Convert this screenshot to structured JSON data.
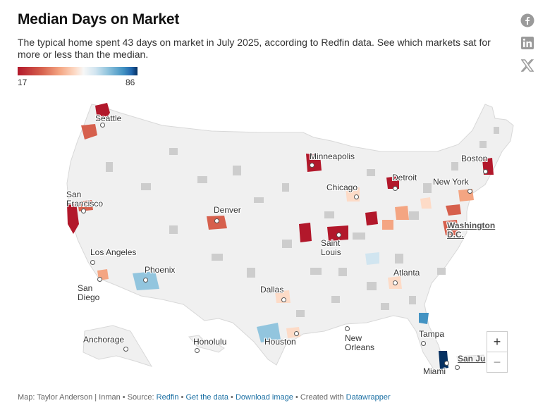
{
  "header": {
    "title": "Median Days on Market",
    "subtitle": "The typical home spent 43 days on market in July 2025, according to Redfin data. See which markets sat for more or less than the median."
  },
  "legend": {
    "min": "17",
    "max": "86"
  },
  "share": [
    {
      "name": "facebook-icon"
    },
    {
      "name": "linkedin-icon"
    },
    {
      "name": "x-icon"
    }
  ],
  "cities": {
    "seattle": "Seattle",
    "san_francisco": "San Francisco",
    "los_angeles": "Los Angeles",
    "san_diego": "San Diego",
    "phoenix": "Phoenix",
    "denver": "Denver",
    "minneapolis": "Minneapolis",
    "chicago": "Chicago",
    "detroit": "Detroit",
    "saint_louis": "Saint Louis",
    "dallas": "Dallas",
    "houston": "Houston",
    "new_orleans": "New Orleans",
    "atlanta": "Atlanta",
    "tampa": "Tampa",
    "miami": "Miami",
    "new_york": "New York",
    "boston": "Boston",
    "washington": "Washington D.C.",
    "anchorage": "Anchorage",
    "honolulu": "Honolulu",
    "san_juan": "San Ju"
  },
  "zoom": {
    "in": "+",
    "out": "−"
  },
  "footer": {
    "prefix": "Map: Taylor Anderson | Inman • Source: ",
    "source_link": "Redfin",
    "sep1": " • ",
    "data_link": "Get the data",
    "sep2": " • ",
    "image_link": "Download image",
    "created": " • Created with ",
    "dw_link": "Datawrapper"
  }
}
